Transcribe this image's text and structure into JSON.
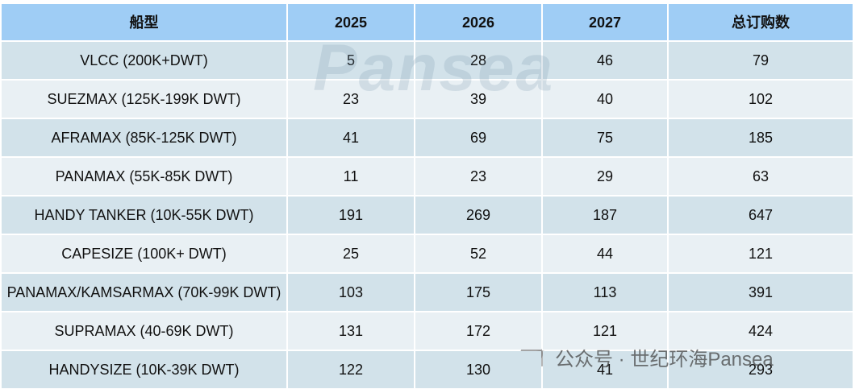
{
  "table": {
    "header": [
      "船型",
      "2025",
      "2026",
      "2027",
      "总订购数"
    ],
    "rows": [
      [
        "VLCC (200K+DWT)",
        5,
        28,
        46,
        79
      ],
      [
        "SUEZMAX (125K-199K DWT)",
        23,
        39,
        40,
        102
      ],
      [
        "AFRAMAX (85K-125K DWT)",
        41,
        69,
        75,
        185
      ],
      [
        "PANAMAX (55K-85K DWT)",
        11,
        23,
        29,
        63
      ],
      [
        "HANDY TANKER (10K-55K DWT)",
        191,
        269,
        187,
        647
      ],
      [
        "CAPESIZE (100K+ DWT)",
        25,
        52,
        44,
        121
      ],
      [
        "PANAMAX/KAMSARMAX (70K-99K DWT)",
        103,
        175,
        113,
        391
      ],
      [
        "SUPRAMAX (40-69K DWT)",
        131,
        172,
        121,
        424
      ],
      [
        "HANDYSIZE (10K-39K DWT)",
        122,
        130,
        41,
        293
      ]
    ]
  },
  "watermark": {
    "logo": "Pansea",
    "caption": "公众号 · 世纪环海Pansea"
  }
}
